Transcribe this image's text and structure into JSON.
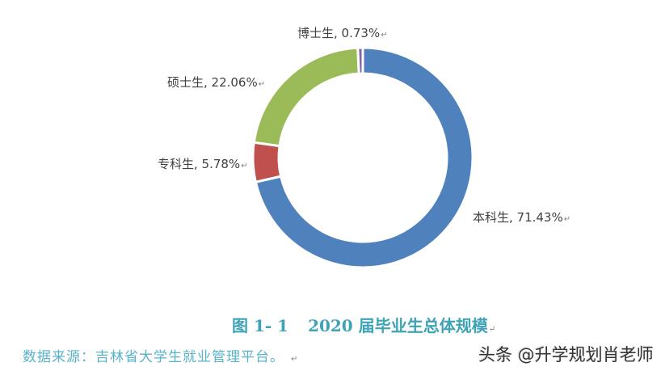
{
  "chart_data": {
    "type": "pie",
    "variant": "donut",
    "title": "图 1- 1 2020 届毕业生总体规模",
    "categories": [
      "本科生",
      "专科生",
      "硕士生",
      "博士生"
    ],
    "values": [
      71.43,
      5.78,
      22.06,
      0.73
    ],
    "unit": "%",
    "colors": [
      "#4F81BD",
      "#C0504D",
      "#9BBB59",
      "#8064A2"
    ],
    "start_angle_deg": 0,
    "direction": "clockwise",
    "data_labels": [
      "本科生, 71.43%",
      "专科生, 5.78%",
      "硕士生, 22.06%",
      "博士生, 0.73%"
    ],
    "legend": "none"
  },
  "labels": {
    "undergrad": "本科生, 71.43%",
    "junior": "专科生, 5.78%",
    "master": "硕士生, 22.06%",
    "doctor": "博士生, 0.73%",
    "return_mark": "↵"
  },
  "caption": {
    "number": "图 1- 1",
    "text": "2020 届毕业生总体规模"
  },
  "source": "数据来源：吉林省大学生就业管理平台。",
  "watermark": "头条 @升学规划肖老师"
}
